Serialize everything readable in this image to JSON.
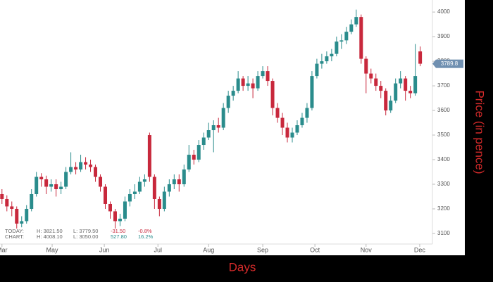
{
  "chart_data": {
    "type": "candlestick",
    "x_label": "Days",
    "y_label": "Price (in pence)",
    "up_color": "#2a8c8c",
    "down_color": "#c8283c",
    "x": [
      0,
      1,
      2,
      3,
      4,
      5,
      6,
      7,
      8,
      9,
      10,
      11,
      12,
      13,
      14,
      15,
      16,
      17,
      18,
      19,
      20,
      21,
      22,
      23,
      24,
      25,
      26,
      27,
      28,
      29,
      30,
      31,
      32,
      33,
      34,
      35,
      36,
      37,
      38,
      39,
      40,
      41,
      42,
      43,
      44,
      45,
      46,
      47,
      48,
      49,
      50,
      51,
      52,
      53,
      54,
      55,
      56,
      57,
      58,
      59,
      60,
      61,
      62,
      63,
      64,
      65,
      66,
      67,
      68,
      69,
      70,
      71,
      72,
      73,
      74,
      75,
      76,
      77,
      78,
      79,
      80,
      81,
      82,
      83,
      84,
      85
    ],
    "open": [
      3260,
      3240,
      3210,
      3200,
      3140,
      3150,
      3200,
      3260,
      3330,
      3320,
      3290,
      3300,
      3280,
      3290,
      3350,
      3370,
      3360,
      3390,
      3380,
      3370,
      3330,
      3290,
      3220,
      3190,
      3150,
      3160,
      3230,
      3260,
      3270,
      3310,
      3500,
      3330,
      3240,
      3200,
      3270,
      3300,
      3320,
      3300,
      3360,
      3420,
      3400,
      3460,
      3490,
      3520,
      3540,
      3530,
      3610,
      3660,
      3680,
      3730,
      3700,
      3710,
      3690,
      3740,
      3760,
      3720,
      3610,
      3570,
      3530,
      3490,
      3510,
      3540,
      3570,
      3610,
      3740,
      3790,
      3800,
      3820,
      3830,
      3880,
      3885,
      3920,
      3950,
      3980,
      3810,
      3750,
      3730,
      3700,
      3680,
      3600,
      3640,
      3710,
      3730,
      3680,
      3670,
      3840
    ],
    "high": [
      3280,
      3255,
      3230,
      3210,
      3170,
      3215,
      3280,
      3350,
      3345,
      3335,
      3320,
      3320,
      3310,
      3370,
      3430,
      3390,
      3420,
      3410,
      3400,
      3380,
      3340,
      3300,
      3230,
      3200,
      3180,
      3250,
      3280,
      3300,
      3330,
      3340,
      3510,
      3340,
      3250,
      3290,
      3320,
      3340,
      3340,
      3380,
      3460,
      3440,
      3480,
      3510,
      3550,
      3560,
      3570,
      3630,
      3680,
      3700,
      3760,
      3740,
      3740,
      3730,
      3760,
      3780,
      3780,
      3730,
      3630,
      3590,
      3550,
      3530,
      3560,
      3590,
      3630,
      3760,
      3810,
      3830,
      3840,
      3850,
      3900,
      3910,
      3940,
      3970,
      4010,
      3990,
      3820,
      3770,
      3750,
      3720,
      3690,
      3660,
      3730,
      3760,
      3740,
      3700,
      3870,
      3860
    ],
    "low": [
      3220,
      3190,
      3170,
      3120,
      3125,
      3140,
      3190,
      3250,
      3290,
      3260,
      3270,
      3250,
      3260,
      3280,
      3340,
      3340,
      3350,
      3360,
      3350,
      3310,
      3270,
      3200,
      3160,
      3120,
      3130,
      3150,
      3210,
      3240,
      3260,
      3290,
      3310,
      3200,
      3170,
      3190,
      3250,
      3280,
      3270,
      3290,
      3350,
      3380,
      3390,
      3440,
      3480,
      3430,
      3510,
      3520,
      3590,
      3640,
      3670,
      3680,
      3680,
      3650,
      3680,
      3730,
      3700,
      3580,
      3550,
      3500,
      3470,
      3470,
      3500,
      3530,
      3550,
      3600,
      3730,
      3770,
      3790,
      3800,
      3820,
      3850,
      3870,
      3910,
      3940,
      3790,
      3670,
      3710,
      3680,
      3650,
      3580,
      3590,
      3630,
      3690,
      3640,
      3650,
      3660,
      3780
    ],
    "close": [
      3240,
      3210,
      3200,
      3140,
      3150,
      3200,
      3260,
      3330,
      3320,
      3290,
      3300,
      3280,
      3290,
      3350,
      3370,
      3360,
      3390,
      3380,
      3370,
      3330,
      3290,
      3220,
      3190,
      3150,
      3160,
      3230,
      3260,
      3270,
      3310,
      3320,
      3330,
      3240,
      3200,
      3270,
      3300,
      3320,
      3300,
      3360,
      3420,
      3400,
      3460,
      3490,
      3520,
      3540,
      3530,
      3610,
      3660,
      3680,
      3730,
      3700,
      3710,
      3690,
      3740,
      3760,
      3720,
      3610,
      3570,
      3530,
      3490,
      3510,
      3540,
      3570,
      3610,
      3740,
      3790,
      3800,
      3820,
      3830,
      3880,
      3885,
      3920,
      3950,
      3980,
      3810,
      3750,
      3730,
      3700,
      3680,
      3600,
      3640,
      3710,
      3730,
      3680,
      3670,
      3740,
      3790
    ],
    "xlim": [
      -0.4,
      87.2
    ],
    "xticks": [
      {
        "value": 0,
        "label": "Mar"
      },
      {
        "value": 10.2,
        "label": "May"
      },
      {
        "value": 20.8,
        "label": "Jun"
      },
      {
        "value": 31.7,
        "label": "Jul"
      },
      {
        "value": 42,
        "label": "Aug"
      },
      {
        "value": 53,
        "label": "Sep"
      },
      {
        "value": 63.6,
        "label": "Oct"
      },
      {
        "value": 74,
        "label": "Nov"
      },
      {
        "value": 84.9,
        "label": "Dec"
      }
    ],
    "ylim": [
      3057,
      4049
    ],
    "yticks": [
      3100,
      3200,
      3300,
      3400,
      3500,
      3600,
      3700,
      3800,
      3900,
      4000
    ],
    "last_price": 3789.8
  },
  "stats": [
    [
      "TODAY:",
      "H: 3821.50",
      "L: 3779.50",
      "-31.50",
      "-0.8%"
    ],
    [
      "CHART:",
      "H: 4008.10",
      "L: 3050.00",
      "527.80",
      "16.2%"
    ]
  ]
}
